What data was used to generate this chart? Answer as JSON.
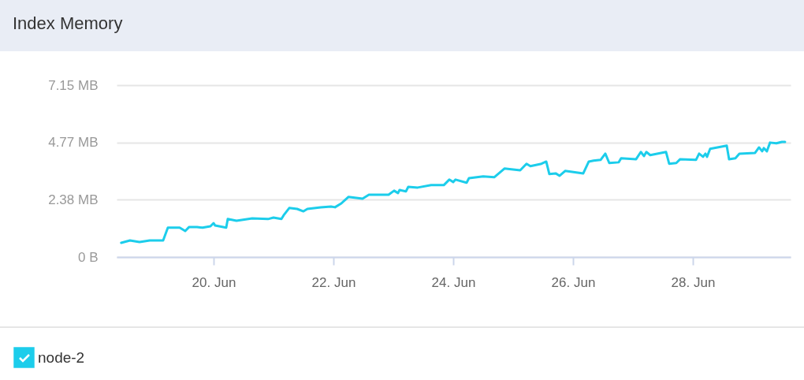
{
  "chart_data": {
    "type": "line",
    "title": "Index Memory",
    "x": [
      "--06-18T11:00",
      "--06-18T14:30",
      "--06-18T18:20",
      "--06-18T22:25",
      "--06-19T03:47",
      "--06-19T05:41",
      "--06-19T10:25",
      "--06-19T12:38",
      "--06-19T14:13",
      "--06-19T17:22",
      "--06-19T19:35",
      "--06-19T22:44",
      "--06-20T00:00",
      "--06-20T00:38",
      "--06-20T05:03",
      "--06-20T05:41",
      "--06-20T09:10",
      "--06-20T15:28",
      "--06-20T21:47",
      "--06-21T00:00",
      "--06-21T03:10",
      "--06-21T04:06",
      "--06-21T06:19",
      "--06-21T09:28",
      "--06-21T12:00",
      "--06-21T13:35",
      "--06-21T18:56",
      "--06-21T23:03",
      "--06-22T00:38",
      "--06-22T03:10",
      "--06-22T06:00",
      "--06-22T11:41",
      "--06-22T14:13",
      "--06-22T22:06",
      "--06-23T00:19",
      "--06-23T01:53",
      "--06-23T02:31",
      "--06-23T05:03",
      "--06-23T06:00",
      "--06-23T09:47",
      "--06-23T15:09",
      "--06-23T20:13",
      "--06-23T22:25",
      "--06-24T00:00",
      "--06-24T00:56",
      "--06-24T05:22",
      "--06-24T06:19",
      "--06-24T12:00",
      "--06-24T16:25",
      "--06-24T20:31",
      "--06-25T02:50",
      "--06-25T05:22",
      "--06-25T06:56",
      "--06-25T11:22",
      "--06-25T13:16",
      "--06-25T14:31",
      "--06-25T17:03",
      "--06-25T18:38",
      "--06-25T20:50",
      "--06-26T04:06",
      "--06-26T06:19",
      "--06-26T08:13",
      "--06-26T11:03",
      "--06-26T12:56",
      "--06-26T14:31",
      "--06-26T18:19",
      "--06-26T19:16",
      "--06-27T01:16",
      "--06-27T03:10",
      "--06-27T04:25",
      "--06-27T05:22",
      "--06-27T06:56",
      "--06-27T13:16",
      "--06-27T14:31",
      "--06-27T17:22",
      "--06-27T18:56",
      "--06-28T01:16",
      "--06-28T02:31",
      "--06-28T04:06",
      "--06-28T05:03",
      "--06-28T05:41",
      "--06-28T06:56",
      "--06-28T13:35",
      "--06-28T14:31",
      "--06-28T17:03",
      "--06-28T18:38",
      "--06-29T00:56",
      "--06-29T02:31",
      "--06-29T03:47",
      "--06-29T04:25",
      "--06-29T05:41",
      "--06-29T06:56",
      "--06-29T09:28",
      "--06-29T11:41",
      "--06-29T12:56"
    ],
    "series": [
      {
        "name": "node-2",
        "color": "#1ccdeb",
        "values": [
          0.59,
          0.69,
          0.62,
          0.69,
          0.69,
          1.22,
          1.22,
          1.08,
          1.25,
          1.25,
          1.22,
          1.28,
          1.41,
          1.31,
          1.22,
          1.58,
          1.51,
          1.61,
          1.58,
          1.64,
          1.58,
          1.74,
          2.04,
          2.0,
          1.9,
          2.0,
          2.07,
          2.1,
          2.07,
          2.23,
          2.5,
          2.43,
          2.59,
          2.59,
          2.76,
          2.66,
          2.79,
          2.73,
          2.92,
          2.89,
          2.99,
          2.99,
          3.22,
          3.12,
          3.22,
          3.09,
          3.28,
          3.35,
          3.32,
          3.68,
          3.61,
          3.88,
          3.78,
          3.88,
          3.97,
          3.45,
          3.48,
          3.38,
          3.58,
          3.48,
          3.97,
          4.01,
          4.04,
          4.3,
          3.91,
          3.94,
          4.11,
          4.07,
          4.37,
          4.2,
          4.37,
          4.24,
          4.37,
          3.88,
          3.91,
          4.07,
          4.04,
          4.3,
          4.17,
          4.3,
          4.17,
          4.5,
          4.63,
          4.07,
          4.11,
          4.3,
          4.33,
          4.56,
          4.4,
          4.53,
          4.4,
          4.76,
          4.73,
          4.79,
          4.79
        ]
      }
    ],
    "xlim": [
      "--06-18T09:10",
      "--06-29T15:10"
    ],
    "xticks": [
      {
        "value": "--06-20",
        "label": "20. Jun"
      },
      {
        "value": "--06-22",
        "label": "22. Jun"
      },
      {
        "value": "--06-24",
        "label": "24. Jun"
      },
      {
        "value": "--06-26",
        "label": "26. Jun"
      },
      {
        "value": "--06-28",
        "label": "28. Jun"
      }
    ],
    "ylim": [
      0,
      7.15
    ],
    "yticks": [
      {
        "value": 0,
        "label": "0 B"
      },
      {
        "value": 2.38,
        "label": "2.38 MB"
      },
      {
        "value": 4.77,
        "label": "4.77 MB"
      },
      {
        "value": 7.15,
        "label": "7.15 MB"
      }
    ],
    "grid": "y",
    "legend": "bottom left",
    "marker": "none",
    "line_style": "solid"
  }
}
